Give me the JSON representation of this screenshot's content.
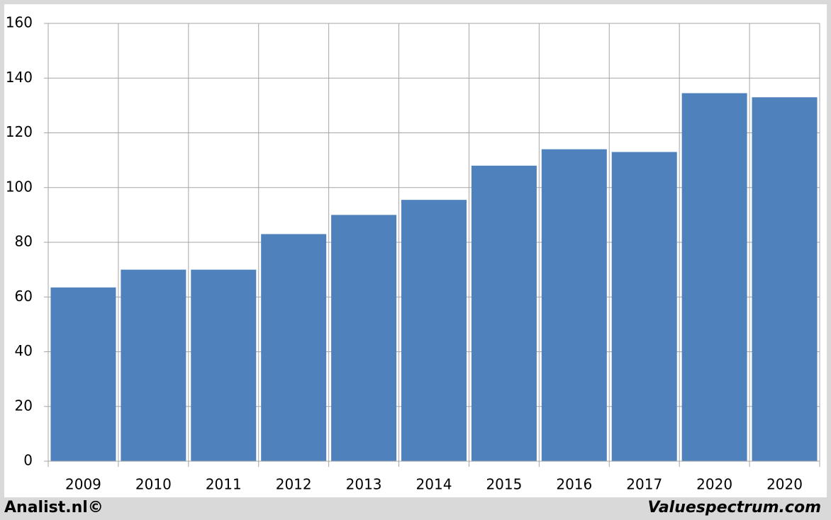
{
  "chart_data": {
    "type": "bar",
    "categories": [
      "2009",
      "2010",
      "2011",
      "2012",
      "2013",
      "2014",
      "2015",
      "2016",
      "2017",
      "2020",
      "2020"
    ],
    "values": [
      63.5,
      70,
      70,
      83,
      90,
      95.5,
      108,
      114,
      113,
      134.5,
      133
    ],
    "color": "#4f81bd",
    "ylim": [
      0,
      160
    ],
    "yticks": [
      0,
      20,
      40,
      60,
      80,
      100,
      120,
      140,
      160
    ],
    "grid": true,
    "footer_left": "Analist.nl©",
    "footer_right": "Valuespectrum.com"
  }
}
